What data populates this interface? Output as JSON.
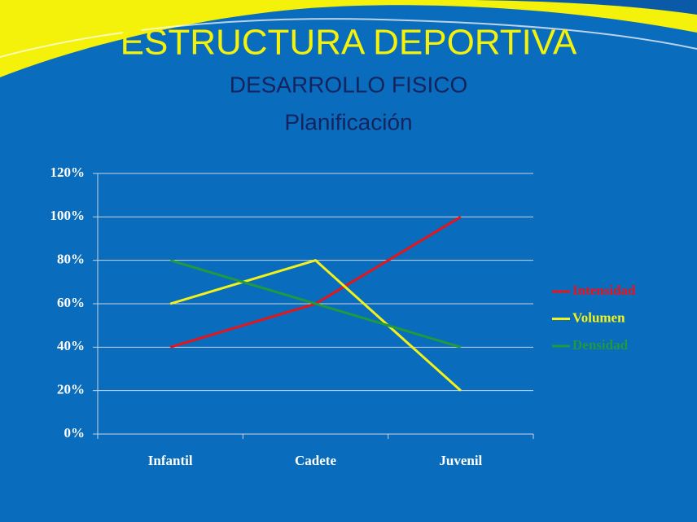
{
  "chart_data": {
    "type": "line",
    "title": "ESTRUCTURA DEPORTIVA",
    "subtitle": [
      "DESARROLLO FISICO",
      "Planificación"
    ],
    "categories": [
      "Infantil",
      "Cadete",
      "Juvenil"
    ],
    "series": [
      {
        "name": "Intensidad",
        "color": "#e8141a",
        "values": [
          40,
          60,
          100
        ]
      },
      {
        "name": "Volumen",
        "color": "#f2f21a",
        "values": [
          60,
          80,
          20
        ]
      },
      {
        "name": "Densidad",
        "color": "#1f9a3e",
        "values": [
          80,
          60,
          40
        ]
      }
    ],
    "ylim": [
      0,
      120
    ],
    "yticks": [
      {
        "value": 0,
        "label": "0%"
      },
      {
        "value": 20,
        "label": "20%"
      },
      {
        "value": 40,
        "label": "40%"
      },
      {
        "value": 60,
        "label": "60%"
      },
      {
        "value": 80,
        "label": "80%"
      },
      {
        "value": 100,
        "label": "100%"
      },
      {
        "value": 120,
        "label": "120%"
      }
    ],
    "grid": true,
    "legend": "right"
  }
}
